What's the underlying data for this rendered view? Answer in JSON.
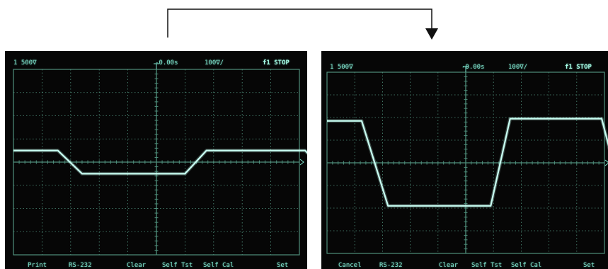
{
  "colors": {
    "background": "#ffffff",
    "screen": "#060606",
    "grid": "#4f8f7c",
    "trace": "#c9fff3",
    "text": "#7fe6cf",
    "connector": "#111111"
  },
  "connector": {
    "icon": "arrow-down-icon"
  },
  "screens": [
    {
      "id": "before",
      "header": {
        "channel_scale": "1 500∇",
        "time_ref": "-0.00s",
        "time_div": "100∇/",
        "trigger": "f1 STOP"
      },
      "softkeys": [
        "Print",
        "RS-232",
        "Clear",
        "Self Tst",
        "Self Cal",
        "Set"
      ],
      "waveform": {
        "grid_divisions": {
          "x": 10,
          "y": 8
        },
        "levels_div": {
          "high": 0.5,
          "low": -0.5
        },
        "time_points_div": [
          [
            0,
            0.5
          ],
          [
            1.55,
            0.5
          ],
          [
            2.4,
            -0.5
          ],
          [
            6.0,
            -0.5
          ],
          [
            6.75,
            0.5
          ],
          [
            10.2,
            0.5
          ],
          [
            10.95,
            -0.5
          ],
          [
            12.0,
            -0.5
          ]
        ]
      }
    },
    {
      "id": "after",
      "header": {
        "channel_scale": "1 500∇",
        "time_ref": "-0.00s",
        "time_div": "100∇/",
        "trigger": "f1 STOP"
      },
      "softkeys": [
        "Cancel",
        "RS-232",
        "Clear",
        "Self Tst",
        "Self Cal",
        "Set"
      ],
      "waveform": {
        "grid_divisions": {
          "x": 10,
          "y": 8
        },
        "levels_div": {
          "high": 1.9,
          "low": -1.9
        },
        "time_points_div": [
          [
            0,
            1.85
          ],
          [
            1.25,
            1.85
          ],
          [
            2.2,
            -1.9
          ],
          [
            5.9,
            -1.9
          ],
          [
            6.6,
            1.95
          ],
          [
            9.9,
            1.95
          ],
          [
            10.7,
            -1.85
          ],
          [
            12.0,
            -1.85
          ]
        ]
      }
    }
  ]
}
